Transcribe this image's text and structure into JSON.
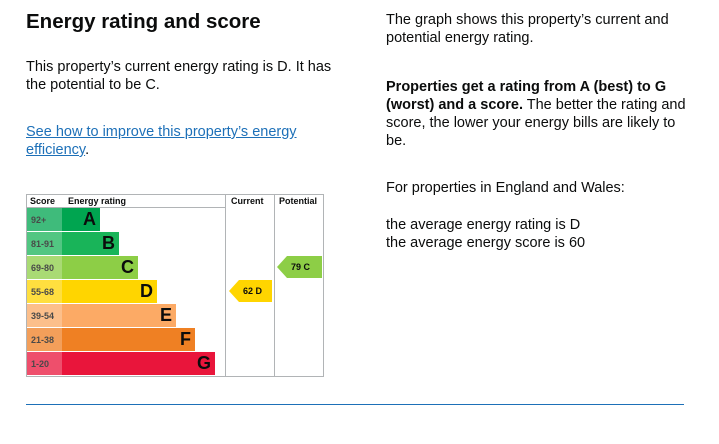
{
  "heading": "Energy rating and score",
  "summary": "This property’s current energy rating is D. It has the potential to be C.",
  "improve_link": "See how to improve this property’s energy efficiency",
  "improve_link_suffix": ".",
  "right": {
    "graph_intro": "The graph shows this property’s current and potential energy rating.",
    "rating_bold": "Properties get a rating from A (best) to G (worst) and a score.",
    "rating_rest": " The better the rating and score, the lower your energy bills are likely to be.",
    "region": "For properties in England and Wales:",
    "avg_rating": "the average energy rating is D",
    "avg_score": "the average energy score is 60"
  },
  "chart_data": {
    "type": "table",
    "headers": {
      "score": "Score",
      "rating": "Energy rating",
      "current": "Current",
      "potential": "Potential"
    },
    "bands": [
      {
        "range": "92+",
        "letter": "A",
        "color": "#00a550"
      },
      {
        "range": "81-91",
        "letter": "B",
        "color": "#19b459"
      },
      {
        "range": "69-80",
        "letter": "C",
        "color": "#8dce46"
      },
      {
        "range": "55-68",
        "letter": "D",
        "color": "#ffd500"
      },
      {
        "range": "39-54",
        "letter": "E",
        "color": "#fcaa65"
      },
      {
        "range": "21-38",
        "letter": "F",
        "color": "#ef8023"
      },
      {
        "range": "1-20",
        "letter": "G",
        "color": "#e9153b"
      }
    ],
    "current": {
      "label": "62 D",
      "score": 62,
      "rating": "D",
      "color": "#ffd500"
    },
    "potential": {
      "label": "79 C",
      "score": 79,
      "rating": "C",
      "color": "#8dce46"
    }
  }
}
